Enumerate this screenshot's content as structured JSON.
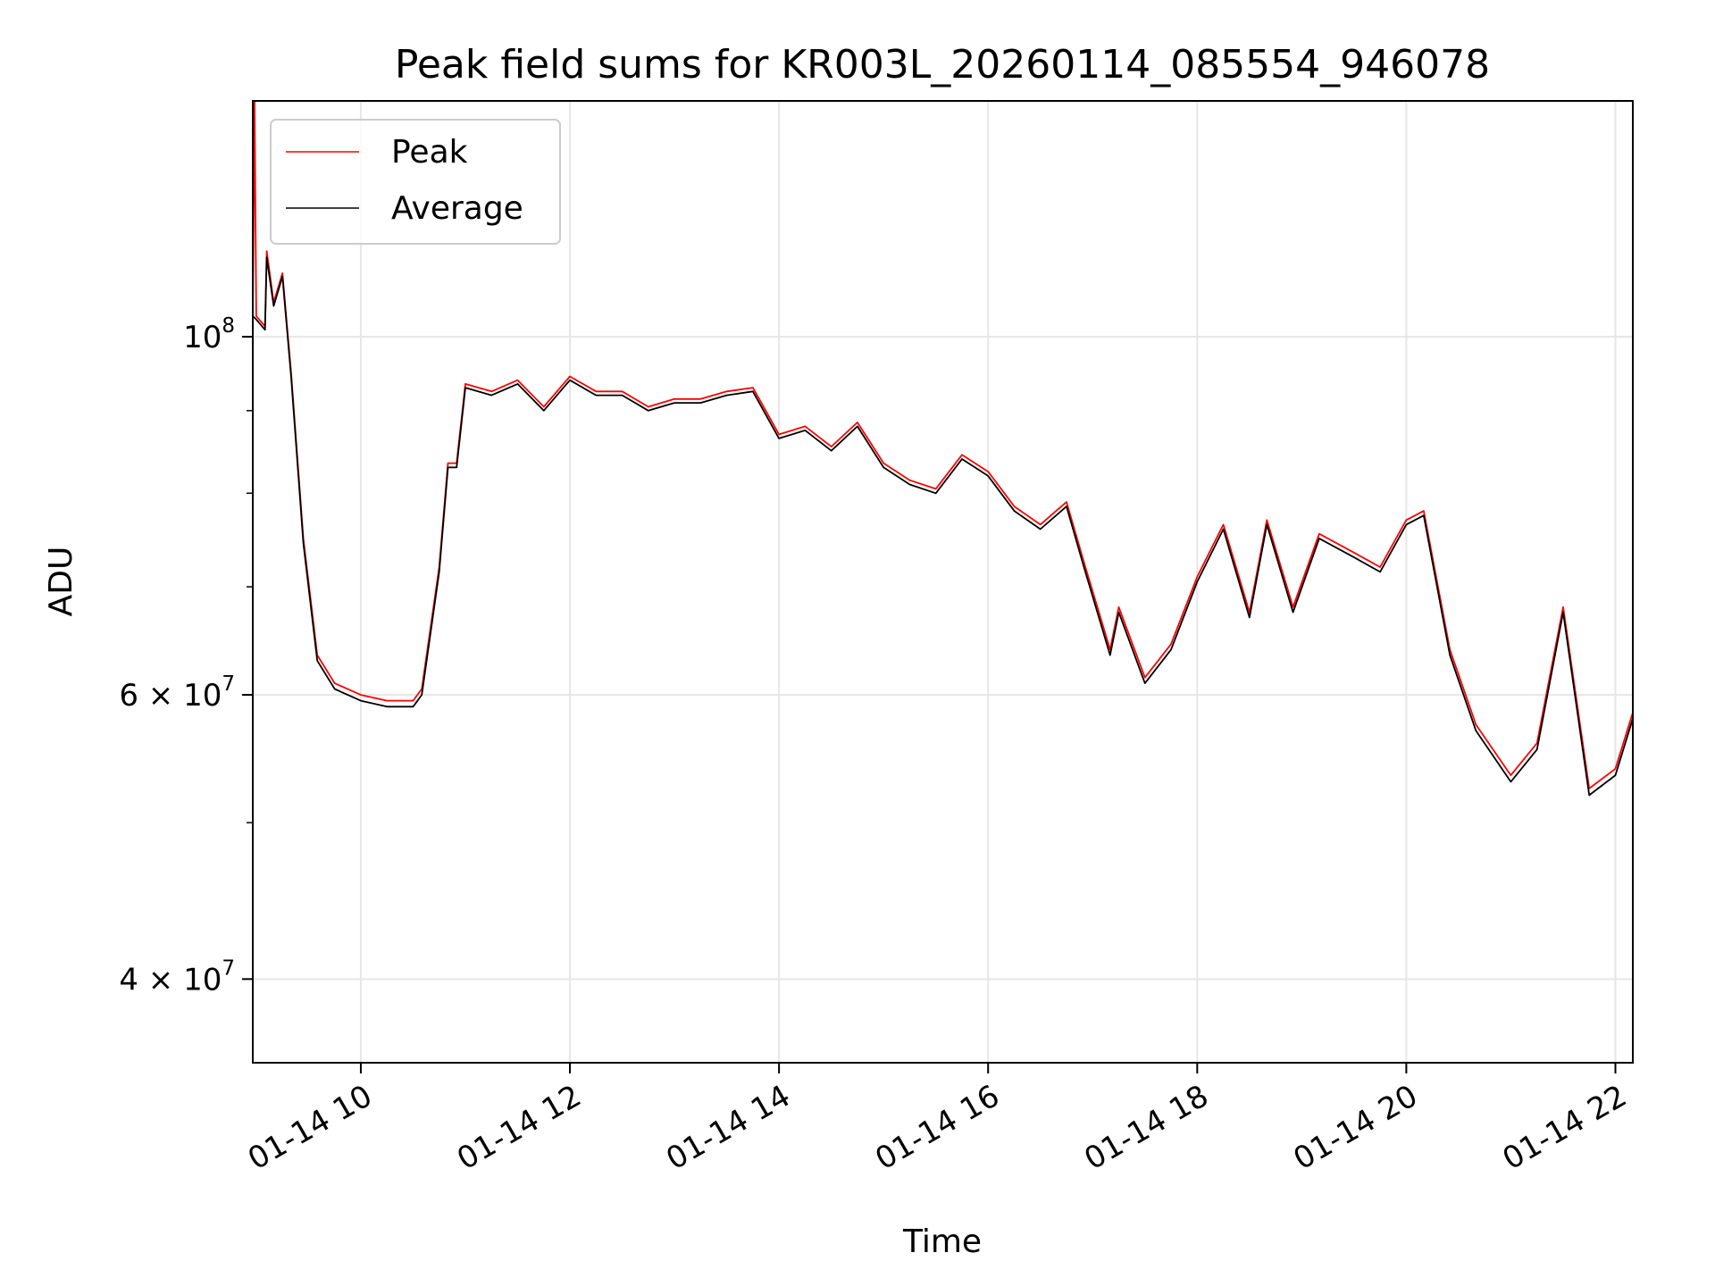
{
  "chart_data": {
    "type": "line",
    "title": "Peak field sums for KR003L_20260114_085554_946078",
    "xlabel": "Time",
    "ylabel": "ADU",
    "yscale": "log",
    "xlim": [
      "2026-01-14T08:58",
      "2026-01-14T22:10"
    ],
    "ylim": [
      35500000,
      140000000
    ],
    "grid": true,
    "legend": "upper left",
    "x_ticks": [
      {
        "value": "2026-01-14T10:00",
        "label": "01-14 10"
      },
      {
        "value": "2026-01-14T12:00",
        "label": "01-14 12"
      },
      {
        "value": "2026-01-14T14:00",
        "label": "01-14 14"
      },
      {
        "value": "2026-01-14T16:00",
        "label": "01-14 16"
      },
      {
        "value": "2026-01-14T18:00",
        "label": "01-14 18"
      },
      {
        "value": "2026-01-14T20:00",
        "label": "01-14 20"
      },
      {
        "value": "2026-01-14T22:00",
        "label": "01-14 22"
      }
    ],
    "y_ticks": [
      {
        "value": 40000000,
        "mantissa": "4 × 10",
        "exponent": "7"
      },
      {
        "value": 60000000,
        "mantissa": "6 × 10",
        "exponent": "7"
      },
      {
        "value": 100000000,
        "mantissa": "10",
        "exponent": "8"
      }
    ],
    "y_minor_ticks": [
      50000000,
      70000000,
      80000000,
      90000000
    ],
    "series": [
      {
        "name": "Peak",
        "color": "#ff0000",
        "points": [
          [
            "2026-01-14T08:58",
            103500000
          ],
          [
            "2026-01-14T08:59",
            140000000
          ],
          [
            "2026-01-14T09:00",
            103000000
          ],
          [
            "2026-01-14T09:05",
            101500000
          ],
          [
            "2026-01-14T09:06",
            113000000
          ],
          [
            "2026-01-14T09:10",
            105000000
          ],
          [
            "2026-01-14T09:15",
            109500000
          ],
          [
            "2026-01-14T09:20",
            95000000
          ],
          [
            "2026-01-14T09:27",
            75000000
          ],
          [
            "2026-01-14T09:35",
            63500000
          ],
          [
            "2026-01-14T09:45",
            61000000
          ],
          [
            "2026-01-14T10:00",
            60000000
          ],
          [
            "2026-01-14T10:15",
            59500000
          ],
          [
            "2026-01-14T10:30",
            59500000
          ],
          [
            "2026-01-14T10:35",
            60500000
          ],
          [
            "2026-01-14T10:45",
            72000000
          ],
          [
            "2026-01-14T10:50",
            83500000
          ],
          [
            "2026-01-14T10:55",
            83500000
          ],
          [
            "2026-01-14T11:00",
            93500000
          ],
          [
            "2026-01-14T11:15",
            92500000
          ],
          [
            "2026-01-14T11:30",
            94000000
          ],
          [
            "2026-01-14T11:45",
            90500000
          ],
          [
            "2026-01-14T12:00",
            94500000
          ],
          [
            "2026-01-14T12:15",
            92500000
          ],
          [
            "2026-01-14T12:30",
            92500000
          ],
          [
            "2026-01-14T12:45",
            90500000
          ],
          [
            "2026-01-14T13:00",
            91500000
          ],
          [
            "2026-01-14T13:15",
            91500000
          ],
          [
            "2026-01-14T13:30",
            92500000
          ],
          [
            "2026-01-14T13:45",
            93000000
          ],
          [
            "2026-01-14T14:00",
            87000000
          ],
          [
            "2026-01-14T14:15",
            88000000
          ],
          [
            "2026-01-14T14:30",
            85500000
          ],
          [
            "2026-01-14T14:45",
            88500000
          ],
          [
            "2026-01-14T15:00",
            83500000
          ],
          [
            "2026-01-14T15:15",
            81500000
          ],
          [
            "2026-01-14T15:30",
            80500000
          ],
          [
            "2026-01-14T15:45",
            84500000
          ],
          [
            "2026-01-14T16:00",
            82500000
          ],
          [
            "2026-01-14T16:15",
            78500000
          ],
          [
            "2026-01-14T16:30",
            76500000
          ],
          [
            "2026-01-14T16:45",
            79000000
          ],
          [
            "2026-01-14T16:55",
            72500000
          ],
          [
            "2026-01-14T17:10",
            64000000
          ],
          [
            "2026-01-14T17:15",
            68000000
          ],
          [
            "2026-01-14T17:30",
            61500000
          ],
          [
            "2026-01-14T17:45",
            64500000
          ],
          [
            "2026-01-14T18:00",
            71000000
          ],
          [
            "2026-01-14T18:15",
            76500000
          ],
          [
            "2026-01-14T18:30",
            67500000
          ],
          [
            "2026-01-14T18:40",
            77000000
          ],
          [
            "2026-01-14T18:55",
            68000000
          ],
          [
            "2026-01-14T19:10",
            75500000
          ],
          [
            "2026-01-14T19:30",
            73500000
          ],
          [
            "2026-01-14T19:45",
            72000000
          ],
          [
            "2026-01-14T20:00",
            77000000
          ],
          [
            "2026-01-14T20:10",
            78000000
          ],
          [
            "2026-01-14T20:25",
            64000000
          ],
          [
            "2026-01-14T20:40",
            57500000
          ],
          [
            "2026-01-14T21:00",
            53500000
          ],
          [
            "2026-01-14T21:15",
            56000000
          ],
          [
            "2026-01-14T21:30",
            68000000
          ],
          [
            "2026-01-14T21:45",
            52500000
          ],
          [
            "2026-01-14T22:00",
            54000000
          ],
          [
            "2026-01-14T22:10",
            58500000
          ]
        ]
      },
      {
        "name": "Average",
        "color": "#000000",
        "points": [
          [
            "2026-01-14T08:58",
            103000000
          ],
          [
            "2026-01-14T09:00",
            102500000
          ],
          [
            "2026-01-14T09:05",
            101000000
          ],
          [
            "2026-01-14T09:06",
            112000000
          ],
          [
            "2026-01-14T09:10",
            104500000
          ],
          [
            "2026-01-14T09:15",
            109000000
          ],
          [
            "2026-01-14T09:20",
            94500000
          ],
          [
            "2026-01-14T09:27",
            74500000
          ],
          [
            "2026-01-14T09:35",
            63000000
          ],
          [
            "2026-01-14T09:45",
            60500000
          ],
          [
            "2026-01-14T10:00",
            59500000
          ],
          [
            "2026-01-14T10:15",
            59000000
          ],
          [
            "2026-01-14T10:30",
            59000000
          ],
          [
            "2026-01-14T10:35",
            60000000
          ],
          [
            "2026-01-14T10:45",
            71500000
          ],
          [
            "2026-01-14T10:50",
            83000000
          ],
          [
            "2026-01-14T10:55",
            83000000
          ],
          [
            "2026-01-14T11:00",
            93000000
          ],
          [
            "2026-01-14T11:15",
            92000000
          ],
          [
            "2026-01-14T11:30",
            93500000
          ],
          [
            "2026-01-14T11:45",
            90000000
          ],
          [
            "2026-01-14T12:00",
            94000000
          ],
          [
            "2026-01-14T12:15",
            92000000
          ],
          [
            "2026-01-14T12:30",
            92000000
          ],
          [
            "2026-01-14T12:45",
            90000000
          ],
          [
            "2026-01-14T13:00",
            91000000
          ],
          [
            "2026-01-14T13:15",
            91000000
          ],
          [
            "2026-01-14T13:30",
            92000000
          ],
          [
            "2026-01-14T13:45",
            92500000
          ],
          [
            "2026-01-14T14:00",
            86500000
          ],
          [
            "2026-01-14T14:15",
            87500000
          ],
          [
            "2026-01-14T14:30",
            85000000
          ],
          [
            "2026-01-14T14:45",
            88000000
          ],
          [
            "2026-01-14T15:00",
            83000000
          ],
          [
            "2026-01-14T15:15",
            81000000
          ],
          [
            "2026-01-14T15:30",
            80000000
          ],
          [
            "2026-01-14T15:45",
            84000000
          ],
          [
            "2026-01-14T16:00",
            82000000
          ],
          [
            "2026-01-14T16:15",
            78000000
          ],
          [
            "2026-01-14T16:30",
            76000000
          ],
          [
            "2026-01-14T16:45",
            78500000
          ],
          [
            "2026-01-14T16:55",
            72000000
          ],
          [
            "2026-01-14T17:10",
            63500000
          ],
          [
            "2026-01-14T17:15",
            67500000
          ],
          [
            "2026-01-14T17:30",
            61000000
          ],
          [
            "2026-01-14T17:45",
            64000000
          ],
          [
            "2026-01-14T18:00",
            70500000
          ],
          [
            "2026-01-14T18:15",
            76000000
          ],
          [
            "2026-01-14T18:30",
            67000000
          ],
          [
            "2026-01-14T18:40",
            76500000
          ],
          [
            "2026-01-14T18:55",
            67500000
          ],
          [
            "2026-01-14T19:10",
            75000000
          ],
          [
            "2026-01-14T19:30",
            73000000
          ],
          [
            "2026-01-14T19:45",
            71500000
          ],
          [
            "2026-01-14T20:00",
            76500000
          ],
          [
            "2026-01-14T20:10",
            77500000
          ],
          [
            "2026-01-14T20:25",
            63500000
          ],
          [
            "2026-01-14T20:40",
            57000000
          ],
          [
            "2026-01-14T21:00",
            53000000
          ],
          [
            "2026-01-14T21:15",
            55500000
          ],
          [
            "2026-01-14T21:30",
            67500000
          ],
          [
            "2026-01-14T21:45",
            52000000
          ],
          [
            "2026-01-14T22:00",
            53500000
          ],
          [
            "2026-01-14T22:10",
            58000000
          ]
        ]
      }
    ]
  }
}
